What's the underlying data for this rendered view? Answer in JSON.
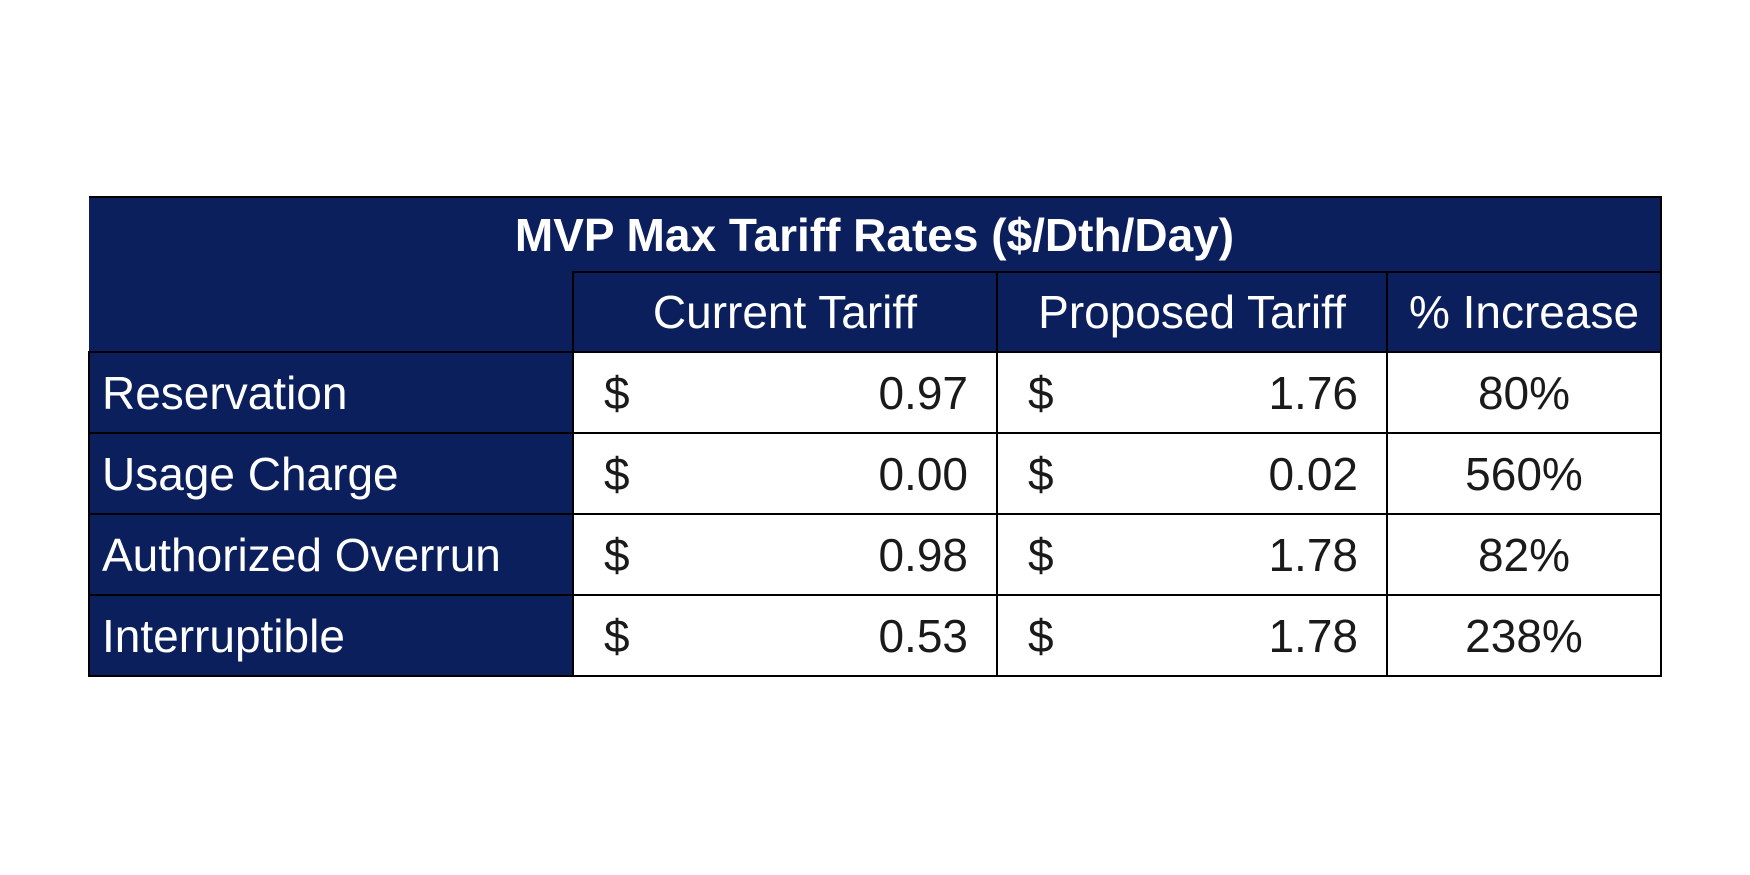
{
  "chart_data": {
    "type": "table",
    "title": "MVP Max Tariff Rates ($/Dth/Day)",
    "columns": [
      "",
      "Current Tariff",
      "Proposed Tariff",
      "% Increase"
    ],
    "currency_symbol": "$",
    "rows": [
      {
        "label": "Reservation",
        "current": "0.97",
        "proposed": "1.76",
        "increase": "80%"
      },
      {
        "label": "Usage Charge",
        "current": "0.00",
        "proposed": "0.02",
        "increase": "560%"
      },
      {
        "label": "Authorized Overrun",
        "current": "0.98",
        "proposed": "1.78",
        "increase": "82%"
      },
      {
        "label": "Interruptible",
        "current": "0.53",
        "proposed": "1.78",
        "increase": "238%"
      }
    ],
    "colors": {
      "header_background": "#0b1f5c",
      "header_text": "#ffffff",
      "cell_background": "#ffffff"
    }
  }
}
